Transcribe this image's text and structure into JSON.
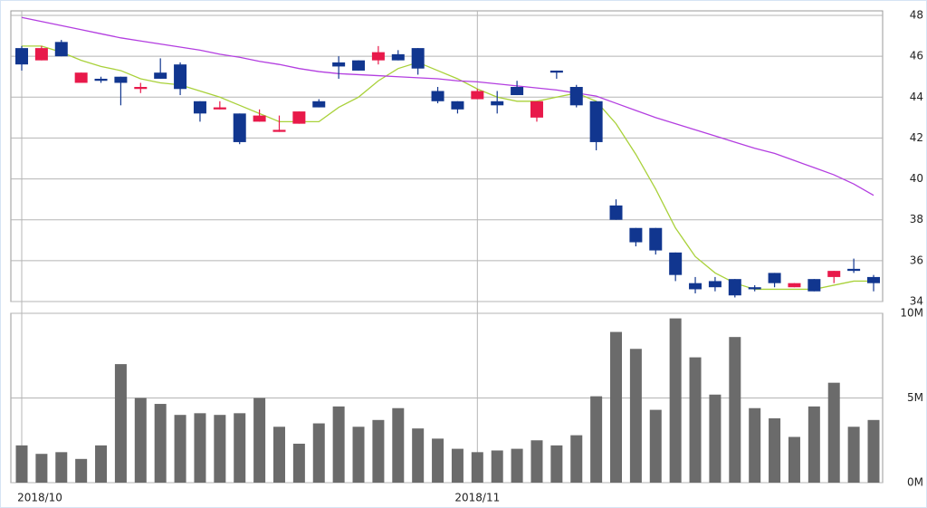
{
  "chart_data": [
    {
      "type": "candlestick",
      "categories": [
        "2018/10",
        null,
        null,
        null,
        null,
        null,
        null,
        null,
        null,
        null,
        null,
        null,
        null,
        null,
        null,
        null,
        null,
        null,
        null,
        null,
        null,
        null,
        null,
        "2018/11",
        null,
        null,
        null,
        null,
        null,
        null,
        null,
        null,
        null,
        null,
        null,
        null,
        null,
        null,
        null,
        null,
        null,
        null,
        null,
        null
      ],
      "open": [
        46.4,
        45.8,
        46.7,
        44.7,
        44.9,
        45.0,
        44.4,
        45.2,
        45.6,
        43.8,
        43.4,
        43.2,
        42.8,
        42.3,
        42.7,
        43.8,
        45.7,
        45.8,
        45.8,
        46.1,
        46.4,
        44.3,
        43.8,
        43.9,
        43.8,
        44.5,
        43.0,
        45.3,
        44.5,
        43.8,
        38.7,
        37.6,
        37.6,
        36.4,
        34.9,
        35.0,
        35.1,
        34.7,
        35.4,
        34.7,
        35.1,
        35.2,
        35.6,
        35.2
      ],
      "high": [
        46.5,
        46.5,
        46.8,
        45.2,
        45.0,
        45.0,
        44.7,
        45.9,
        45.7,
        43.8,
        43.8,
        43.2,
        43.4,
        43.1,
        43.3,
        43.9,
        46.0,
        45.8,
        46.5,
        46.3,
        46.4,
        44.5,
        43.8,
        44.4,
        44.3,
        44.8,
        43.8,
        45.3,
        44.6,
        43.8,
        39.0,
        37.6,
        37.6,
        36.4,
        35.2,
        35.2,
        35.1,
        34.8,
        35.4,
        34.9,
        35.1,
        35.5,
        36.1,
        35.3
      ],
      "low": [
        45.3,
        45.8,
        46.0,
        44.7,
        44.7,
        43.6,
        44.2,
        44.9,
        44.1,
        42.8,
        43.4,
        41.7,
        42.8,
        42.3,
        42.7,
        43.5,
        44.9,
        45.3,
        45.6,
        45.8,
        45.1,
        43.7,
        43.2,
        43.9,
        43.2,
        44.1,
        42.8,
        44.9,
        43.5,
        41.4,
        38.0,
        36.7,
        36.3,
        35.0,
        34.4,
        34.5,
        34.2,
        34.5,
        34.7,
        34.7,
        34.5,
        34.9,
        35.4,
        34.5
      ],
      "close": [
        45.6,
        46.4,
        46.0,
        45.2,
        44.8,
        44.7,
        44.5,
        44.9,
        44.4,
        43.2,
        43.5,
        41.8,
        43.1,
        42.4,
        43.3,
        43.5,
        45.5,
        45.3,
        46.2,
        45.8,
        45.4,
        43.8,
        43.4,
        44.3,
        43.6,
        44.1,
        43.8,
        45.2,
        43.6,
        41.8,
        38.0,
        36.9,
        36.5,
        35.3,
        34.6,
        34.7,
        34.3,
        34.6,
        34.9,
        34.9,
        34.5,
        35.5,
        35.5,
        34.9
      ],
      "up_color": "#e8194a",
      "down_color": "#11368f",
      "series": [
        {
          "color": "#a9d13a",
          "values": [
            46.5,
            46.5,
            46.2,
            45.8,
            45.5,
            45.3,
            44.9,
            44.7,
            44.6,
            44.3,
            44.0,
            43.6,
            43.2,
            42.8,
            42.8,
            42.8,
            43.5,
            44.0,
            44.8,
            45.4,
            45.7,
            45.3,
            44.9,
            44.4,
            44.0,
            43.8,
            43.8,
            44.0,
            44.2,
            43.8,
            42.7,
            41.2,
            39.5,
            37.6,
            36.2,
            35.4,
            34.9,
            34.6,
            34.6,
            34.6,
            34.6,
            34.8,
            35.0,
            35.0
          ]
        },
        {
          "color": "#b33ee0",
          "values": [
            47.9,
            47.7,
            47.5,
            47.3,
            47.1,
            46.9,
            46.75,
            46.6,
            46.45,
            46.3,
            46.1,
            45.95,
            45.75,
            45.6,
            45.4,
            45.25,
            45.15,
            45.1,
            45.05,
            45.0,
            44.95,
            44.9,
            44.8,
            44.75,
            44.65,
            44.55,
            44.45,
            44.35,
            44.2,
            44.05,
            43.7,
            43.35,
            43.0,
            42.7,
            42.4,
            42.1,
            41.8,
            41.5,
            41.25,
            40.9,
            40.55,
            40.2,
            39.75,
            39.2
          ]
        }
      ],
      "ylim": [
        34,
        48
      ],
      "yticks": [
        34,
        36,
        38,
        40,
        42,
        44,
        46,
        48
      ],
      "grid": true
    },
    {
      "type": "bar",
      "color": "#6b6b6b",
      "values": [
        2.2,
        1.7,
        1.8,
        1.4,
        2.2,
        7.0,
        5.0,
        4.65,
        4.0,
        4.1,
        4.0,
        4.1,
        5.0,
        3.3,
        2.3,
        3.5,
        4.5,
        3.3,
        3.7,
        4.4,
        3.2,
        2.6,
        2.0,
        1.8,
        1.9,
        2.0,
        2.5,
        2.2,
        2.8,
        5.1,
        8.9,
        7.9,
        4.3,
        9.7,
        7.4,
        5.2,
        8.6,
        4.4,
        3.8,
        2.7,
        4.5,
        5.9,
        3.3,
        3.7
      ],
      "ylim": [
        0,
        10
      ],
      "yticks": [
        {
          "value": 0,
          "label": "0M"
        },
        {
          "value": 5,
          "label": "5M"
        },
        {
          "value": 10,
          "label": "10M"
        }
      ],
      "grid": true
    }
  ]
}
